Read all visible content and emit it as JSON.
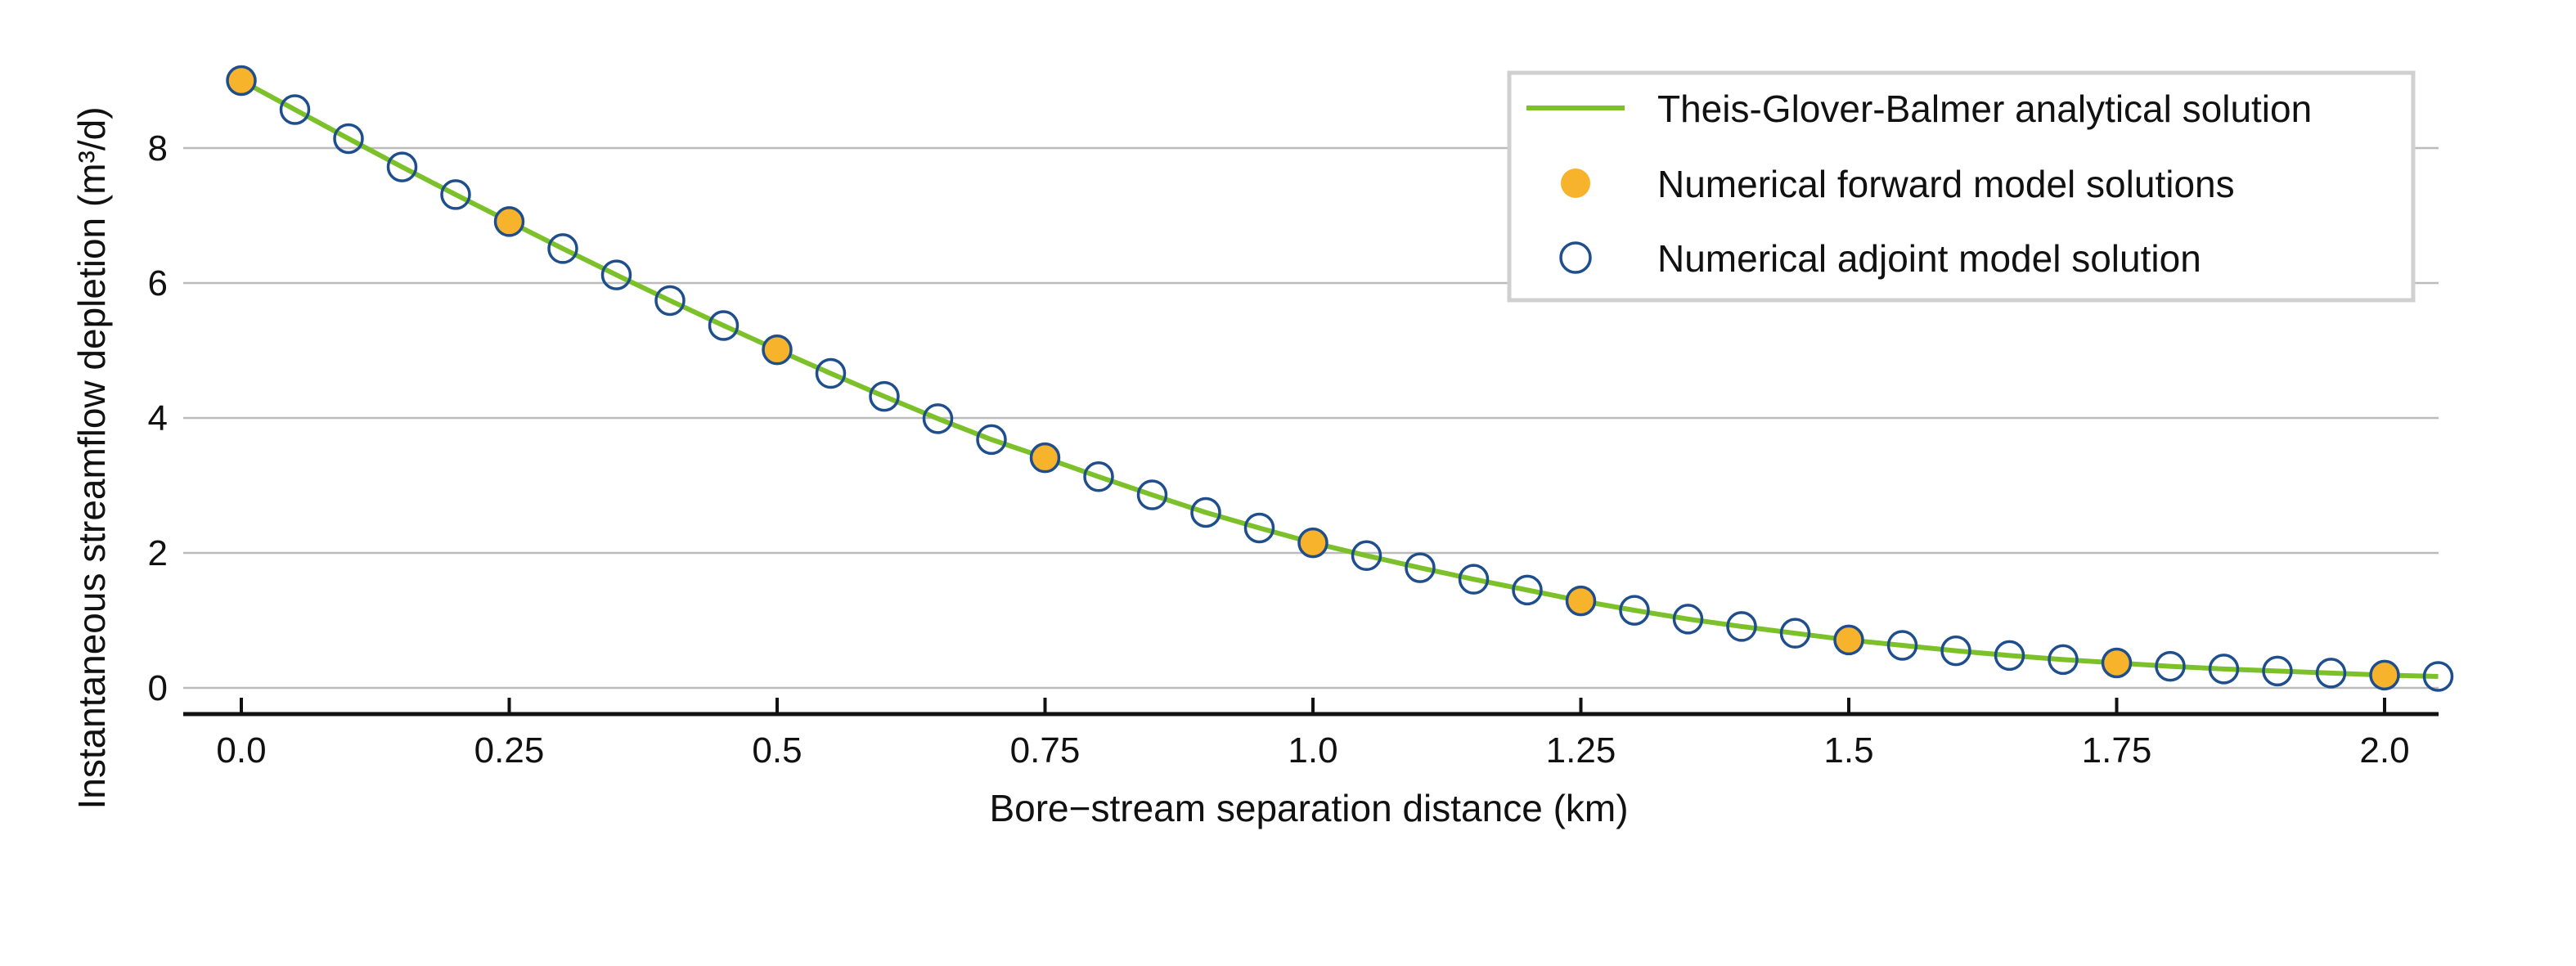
{
  "chart_data": {
    "type": "line",
    "title": "",
    "xlabel": "Bore−stream separation distance (km)",
    "ylabel": "Instantaneous streamflow depletion (m³/d)",
    "xlim": [
      -0.05,
      2.05
    ],
    "ylim": [
      -0.4,
      9.2
    ],
    "x_ticks": [
      0.0,
      0.25,
      0.5,
      0.75,
      1.0,
      1.25,
      1.5,
      1.75,
      2.0
    ],
    "x_tick_labels": [
      "0.0",
      "0.25",
      "0.5",
      "0.75",
      "1.0",
      "1.25",
      "1.5",
      "1.75",
      "2.0"
    ],
    "y_ticks": [
      0,
      2,
      4,
      6,
      8
    ],
    "y_tick_labels": [
      "0",
      "2",
      "4",
      "6",
      "8"
    ],
    "grid": "horizontal",
    "legend_position": "top-right",
    "colors": {
      "analytical": "#7cc12a",
      "forward": "#f6b32b",
      "adjoint": "#1f4e8c",
      "grid": "#bbbbbb",
      "axis": "#111111"
    },
    "series": [
      {
        "name": "Theis-Glover-Balmer analytical solution",
        "kind": "line",
        "x": [
          0.0,
          0.05,
          0.1,
          0.15,
          0.2,
          0.25,
          0.3,
          0.35,
          0.4,
          0.45,
          0.5,
          0.55,
          0.6,
          0.65,
          0.7,
          0.75,
          0.8,
          0.85,
          0.9,
          0.95,
          1.0,
          1.05,
          1.1,
          1.15,
          1.2,
          1.25,
          1.3,
          1.35,
          1.4,
          1.45,
          1.5,
          1.55,
          1.6,
          1.65,
          1.7,
          1.75,
          1.8,
          1.85,
          1.9,
          1.95,
          2.0,
          2.05
        ],
        "y": [
          9.0,
          8.57,
          8.14,
          7.72,
          7.31,
          6.91,
          6.51,
          6.12,
          5.74,
          5.37,
          5.01,
          4.66,
          4.32,
          3.99,
          3.68,
          3.41,
          3.13,
          2.86,
          2.6,
          2.37,
          2.15,
          1.96,
          1.78,
          1.61,
          1.45,
          1.29,
          1.15,
          1.02,
          0.91,
          0.81,
          0.71,
          0.63,
          0.55,
          0.48,
          0.42,
          0.37,
          0.32,
          0.28,
          0.25,
          0.22,
          0.19,
          0.17
        ]
      },
      {
        "name": "Numerical forward model solutions",
        "kind": "filled-marker",
        "x": [
          0.0,
          0.25,
          0.5,
          0.75,
          1.0,
          1.25,
          1.5,
          1.75,
          2.0
        ],
        "y": [
          9.0,
          6.91,
          5.01,
          3.41,
          2.15,
          1.29,
          0.71,
          0.37,
          0.19
        ]
      },
      {
        "name": "Numerical adjoint model solution",
        "kind": "hollow-marker",
        "x": [
          0.0,
          0.05,
          0.1,
          0.15,
          0.2,
          0.25,
          0.3,
          0.35,
          0.4,
          0.45,
          0.5,
          0.55,
          0.6,
          0.65,
          0.7,
          0.75,
          0.8,
          0.85,
          0.9,
          0.95,
          1.0,
          1.05,
          1.1,
          1.15,
          1.2,
          1.25,
          1.3,
          1.35,
          1.4,
          1.45,
          1.5,
          1.55,
          1.6,
          1.65,
          1.7,
          1.75,
          1.8,
          1.85,
          1.9,
          1.95,
          2.0,
          2.05
        ],
        "y": [
          9.0,
          8.57,
          8.14,
          7.72,
          7.31,
          6.91,
          6.51,
          6.12,
          5.74,
          5.37,
          5.01,
          4.66,
          4.32,
          3.99,
          3.68,
          3.41,
          3.13,
          2.86,
          2.6,
          2.37,
          2.15,
          1.96,
          1.78,
          1.61,
          1.45,
          1.29,
          1.15,
          1.02,
          0.91,
          0.81,
          0.71,
          0.63,
          0.55,
          0.48,
          0.42,
          0.37,
          0.32,
          0.28,
          0.25,
          0.22,
          0.19,
          0.17
        ]
      }
    ]
  }
}
